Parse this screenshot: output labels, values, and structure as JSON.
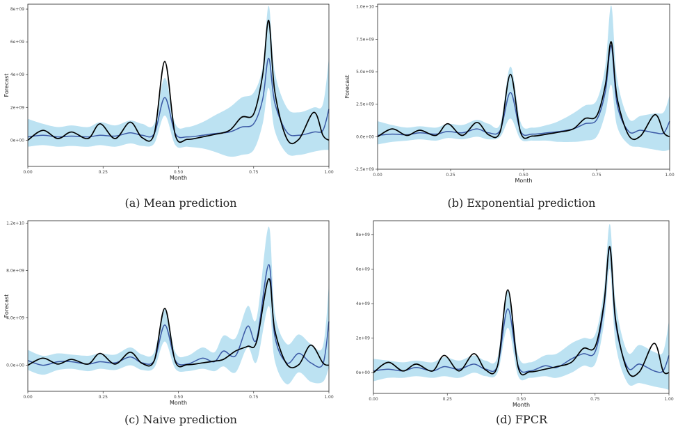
{
  "chart_data": [
    {
      "type": "line",
      "caption": "(a) Mean prediction",
      "xlabel": "Month",
      "ylabel": "Forecast",
      "xlim": [
        0,
        1
      ],
      "ylim": [
        -1600000000.0,
        8300000000.0
      ],
      "xticks": [
        0,
        0.25,
        0.5,
        0.75,
        1
      ],
      "xtick_labels": [
        "0.00",
        "0.25",
        "0.50",
        "0.75",
        "1.00"
      ],
      "yticks": [
        0,
        2000000000.0,
        4000000000.0,
        6000000000.0,
        8000000000.0
      ],
      "ytick_labels": [
        "0e+00",
        "2e+09",
        "4e+09",
        "6e+09",
        "8e+09"
      ],
      "x": [
        0,
        0.05,
        0.1,
        0.145,
        0.2,
        0.24,
        0.29,
        0.34,
        0.38,
        0.42,
        0.455,
        0.49,
        0.53,
        0.58,
        0.62,
        0.67,
        0.71,
        0.75,
        0.78,
        0.8,
        0.82,
        0.86,
        0.9,
        0.95,
        0.98,
        1.0
      ],
      "series": [
        {
          "color": "#000000",
          "values": [
            0.0,
            600000000.0,
            100000000.0,
            500000000.0,
            100000000.0,
            1000000000.0,
            100000000.0,
            1100000000.0,
            150000000.0,
            400000000.0,
            4800000000.0,
            300000000.0,
            50000000.0,
            200000000.0,
            350000000.0,
            600000000.0,
            1400000000.0,
            1600000000.0,
            4000000000.0,
            7300000000.0,
            3000000000.0,
            100000000.0,
            50000000.0,
            1700000000.0,
            300000000.0,
            0.0
          ]
        },
        {
          "color": "#3c5aa6",
          "values": [
            200000000.0,
            300000000.0,
            200000000.0,
            250000000.0,
            200000000.0,
            300000000.0,
            250000000.0,
            450000000.0,
            300000000.0,
            400000000.0,
            2600000000.0,
            400000000.0,
            200000000.0,
            300000000.0,
            400000000.0,
            500000000.0,
            800000000.0,
            1000000000.0,
            2500000000.0,
            5000000000.0,
            2300000000.0,
            500000000.0,
            300000000.0,
            500000000.0,
            600000000.0,
            1900000000.0
          ]
        }
      ],
      "band": {
        "color": "#a6d8ee",
        "lower": [
          -400000000.0,
          -300000000.0,
          -400000000.0,
          -350000000.0,
          -400000000.0,
          -300000000.0,
          -400000000.0,
          -200000000.0,
          -350000000.0,
          -200000000.0,
          1500000000.0,
          -300000000.0,
          -400000000.0,
          -500000000.0,
          -700000000.0,
          -1000000000.0,
          -900000000.0,
          -600000000.0,
          1000000000.0,
          3200000000.0,
          600000000.0,
          -800000000.0,
          -900000000.0,
          -700000000.0,
          -600000000.0,
          -600000000.0
        ],
        "upper": [
          1300000000.0,
          1000000000.0,
          800000000.0,
          900000000.0,
          800000000.0,
          1100000000.0,
          900000000.0,
          1200000000.0,
          1000000000.0,
          1000000000.0,
          3800000000.0,
          1000000000.0,
          800000000.0,
          1100000000.0,
          1500000000.0,
          2000000000.0,
          2600000000.0,
          2900000000.0,
          4500000000.0,
          8200000000.0,
          4200000000.0,
          2000000000.0,
          1700000000.0,
          2000000000.0,
          2200000000.0,
          5000000000.0
        ]
      }
    },
    {
      "type": "line",
      "caption": "(b) Exponential prediction",
      "xlabel": "Month",
      "ylabel": "Forecast",
      "xlim": [
        0,
        1
      ],
      "ylim": [
        -2500000000.0,
        10200000000.0
      ],
      "xticks": [
        0,
        0.25,
        0.5,
        0.75,
        1
      ],
      "xtick_labels": [
        "0.00",
        "0.25",
        "0.50",
        "0.75",
        "1.00"
      ],
      "yticks": [
        -2500000000.0,
        0,
        2500000000.0,
        5000000000.0,
        7500000000.0,
        10000000000.0
      ],
      "ytick_labels": [
        "-2.5e+09",
        "0.0e+00",
        "2.5e+09",
        "5.0e+09",
        "7.5e+09",
        "1.0e+10"
      ],
      "x": [
        0,
        0.05,
        0.1,
        0.145,
        0.2,
        0.24,
        0.29,
        0.34,
        0.38,
        0.42,
        0.455,
        0.49,
        0.53,
        0.58,
        0.62,
        0.67,
        0.71,
        0.75,
        0.78,
        0.8,
        0.82,
        0.86,
        0.9,
        0.95,
        0.98,
        1.0
      ],
      "series": [
        {
          "color": "#000000",
          "values": [
            0.0,
            600000000.0,
            100000000.0,
            500000000.0,
            100000000.0,
            1000000000.0,
            100000000.0,
            1100000000.0,
            150000000.0,
            400000000.0,
            4800000000.0,
            300000000.0,
            50000000.0,
            200000000.0,
            350000000.0,
            600000000.0,
            1400000000.0,
            1600000000.0,
            4000000000.0,
            7300000000.0,
            3000000000.0,
            100000000.0,
            50000000.0,
            1700000000.0,
            300000000.0,
            0.0
          ]
        },
        {
          "color": "#3c5aa6",
          "values": [
            100000000.0,
            200000000.0,
            150000000.0,
            300000000.0,
            200000000.0,
            400000000.0,
            300000000.0,
            600000000.0,
            300000000.0,
            500000000.0,
            3400000000.0,
            400000000.0,
            200000000.0,
            300000000.0,
            400000000.0,
            600000000.0,
            1000000000.0,
            1300000000.0,
            3500000000.0,
            7000000000.0,
            2500000000.0,
            400000000.0,
            500000000.0,
            300000000.0,
            300000000.0,
            1200000000.0
          ]
        }
      ],
      "band": {
        "color": "#a6d8ee",
        "lower": [
          -600000000.0,
          -400000000.0,
          -300000000.0,
          -200000000.0,
          -300000000.0,
          -100000000.0,
          -200000000.0,
          0.0,
          -200000000.0,
          0.0,
          1400000000.0,
          -200000000.0,
          -300000000.0,
          -300000000.0,
          -400000000.0,
          -400000000.0,
          -300000000.0,
          0.0,
          1800000000.0,
          4000000000.0,
          800000000.0,
          -600000000.0,
          -800000000.0,
          -1000000000.0,
          -1100000000.0,
          -1000000000.0
        ],
        "upper": [
          1200000000.0,
          900000000.0,
          700000000.0,
          800000000.0,
          700000000.0,
          1000000000.0,
          900000000.0,
          1300000000.0,
          1000000000.0,
          1000000000.0,
          5400000000.0,
          1100000000.0,
          700000000.0,
          900000000.0,
          1200000000.0,
          1800000000.0,
          2400000000.0,
          2800000000.0,
          5500000000.0,
          10100000000.0,
          4500000000.0,
          1400000000.0,
          1600000000.0,
          1800000000.0,
          1900000000.0,
          3200000000.0
        ]
      }
    },
    {
      "type": "line",
      "caption": "(c) Naive prediction",
      "xlabel": "Month",
      "ylabel": "Forecast",
      "xlim": [
        0,
        1
      ],
      "ylim": [
        -2200000000.0,
        12200000000.0
      ],
      "xticks": [
        0,
        0.25,
        0.5,
        0.75,
        1
      ],
      "xtick_labels": [
        "0.00",
        "0.25",
        "0.50",
        "0.75",
        "1.00"
      ],
      "yticks": [
        0,
        4000000000.0,
        8000000000.0,
        12000000000.0
      ],
      "ytick_labels": [
        "0.0e+00",
        "4.0e+09",
        "8.0e+09",
        "1.2e+10"
      ],
      "x": [
        0,
        0.05,
        0.1,
        0.145,
        0.2,
        0.24,
        0.29,
        0.34,
        0.38,
        0.42,
        0.455,
        0.49,
        0.53,
        0.58,
        0.62,
        0.65,
        0.69,
        0.73,
        0.76,
        0.8,
        0.82,
        0.86,
        0.9,
        0.94,
        0.98,
        1.0
      ],
      "series": [
        {
          "color": "#000000",
          "values": [
            0.0,
            600000000.0,
            100000000.0,
            500000000.0,
            100000000.0,
            1000000000.0,
            100000000.0,
            1100000000.0,
            150000000.0,
            400000000.0,
            4800000000.0,
            300000000.0,
            50000000.0,
            200000000.0,
            350000000.0,
            500000000.0,
            1200000000.0,
            1600000000.0,
            2000000000.0,
            7300000000.0,
            3000000000.0,
            100000000.0,
            50000000.0,
            1700000000.0,
            200000000.0,
            0.0
          ]
        },
        {
          "color": "#3c5aa6",
          "values": [
            400000000.0,
            0.0,
            300000000.0,
            300000000.0,
            100000000.0,
            300000000.0,
            200000000.0,
            700000000.0,
            200000000.0,
            400000000.0,
            3400000000.0,
            400000000.0,
            100000000.0,
            600000000.0,
            300000000.0,
            1200000000.0,
            800000000.0,
            3300000000.0,
            2200000000.0,
            8500000000.0,
            2500000000.0,
            200000000.0,
            1000000000.0,
            200000000.0,
            100000000.0,
            3700000000.0
          ]
        }
      ],
      "band": {
        "color": "#a6d8ee",
        "lower": [
          -400000000.0,
          -800000000.0,
          -400000000.0,
          -300000000.0,
          -500000000.0,
          -300000000.0,
          -400000000.0,
          0.0,
          -400000000.0,
          -200000000.0,
          2000000000.0,
          -300000000.0,
          -500000000.0,
          -300000000.0,
          -500000000.0,
          -100000000.0,
          -600000000.0,
          1500000000.0,
          300000000.0,
          5000000000.0,
          400000000.0,
          -1600000000.0,
          -600000000.0,
          -1400000000.0,
          -1400000000.0,
          -200000000.0
        ],
        "upper": [
          1300000000.0,
          800000000.0,
          1000000000.0,
          900000000.0,
          800000000.0,
          1000000000.0,
          900000000.0,
          1500000000.0,
          900000000.0,
          1100000000.0,
          4800000000.0,
          1100000000.0,
          800000000.0,
          1500000000.0,
          1100000000.0,
          2500000000.0,
          2300000000.0,
          5000000000.0,
          4000000000.0,
          11700000000.0,
          4500000000.0,
          1800000000.0,
          2600000000.0,
          1800000000.0,
          1600000000.0,
          6800000000.0
        ]
      }
    },
    {
      "type": "line",
      "caption": "(d) FPCR",
      "xlabel": "Month",
      "ylabel": "",
      "xlim": [
        0,
        1
      ],
      "ylim": [
        -1200000000.0,
        8800000000.0
      ],
      "xticks": [
        0,
        0.25,
        0.5,
        0.75,
        1
      ],
      "xtick_labels": [
        "0.00",
        "0.25",
        "0.50",
        "0.75",
        "1.00"
      ],
      "yticks": [
        0,
        2000000000.0,
        4000000000.0,
        6000000000.0,
        8000000000.0
      ],
      "ytick_labels": [
        "0e+00",
        "2e+09",
        "4e+09",
        "6e+09",
        "8e+09"
      ],
      "x": [
        0,
        0.05,
        0.1,
        0.145,
        0.2,
        0.24,
        0.29,
        0.34,
        0.38,
        0.42,
        0.455,
        0.49,
        0.53,
        0.58,
        0.62,
        0.67,
        0.71,
        0.75,
        0.78,
        0.8,
        0.82,
        0.86,
        0.9,
        0.95,
        0.98,
        1.0
      ],
      "series": [
        {
          "color": "#000000",
          "values": [
            0.0,
            600000000.0,
            100000000.0,
            500000000.0,
            100000000.0,
            1000000000.0,
            100000000.0,
            1100000000.0,
            150000000.0,
            400000000.0,
            4800000000.0,
            300000000.0,
            50000000.0,
            200000000.0,
            350000000.0,
            600000000.0,
            1400000000.0,
            1500000000.0,
            4000000000.0,
            7300000000.0,
            3000000000.0,
            100000000.0,
            50000000.0,
            1700000000.0,
            100000000.0,
            0.0
          ]
        },
        {
          "color": "#3c5aa6",
          "values": [
            100000000.0,
            200000000.0,
            100000000.0,
            300000000.0,
            100000000.0,
            350000000.0,
            200000000.0,
            500000000.0,
            200000000.0,
            400000000.0,
            3700000000.0,
            400000000.0,
            100000000.0,
            400000000.0,
            300000000.0,
            800000000.0,
            1100000000.0,
            1200000000.0,
            3800000000.0,
            7200000000.0,
            2800000000.0,
            300000000.0,
            500000000.0,
            100000000.0,
            100000000.0,
            1000000000.0
          ]
        }
      ],
      "band": {
        "color": "#a6d8ee",
        "lower": [
          -500000000.0,
          -300000000.0,
          -300000000.0,
          -200000000.0,
          -300000000.0,
          -200000000.0,
          -300000000.0,
          0.0,
          -200000000.0,
          0.0,
          2600000000.0,
          -200000000.0,
          -300000000.0,
          -200000000.0,
          -300000000.0,
          0.0,
          400000000.0,
          500000000.0,
          2800000000.0,
          6000000000.0,
          1600000000.0,
          -600000000.0,
          -600000000.0,
          -800000000.0,
          -900000000.0,
          -1000000000.0
        ],
        "upper": [
          800000000.0,
          700000000.0,
          600000000.0,
          700000000.0,
          600000000.0,
          900000000.0,
          700000000.0,
          1000000000.0,
          700000000.0,
          900000000.0,
          4800000000.0,
          1000000000.0,
          600000000.0,
          1000000000.0,
          1100000000.0,
          1700000000.0,
          2000000000.0,
          2200000000.0,
          4800000000.0,
          8600000000.0,
          4000000000.0,
          1200000000.0,
          1600000000.0,
          1200000000.0,
          1200000000.0,
          3000000000.0
        ]
      }
    }
  ]
}
